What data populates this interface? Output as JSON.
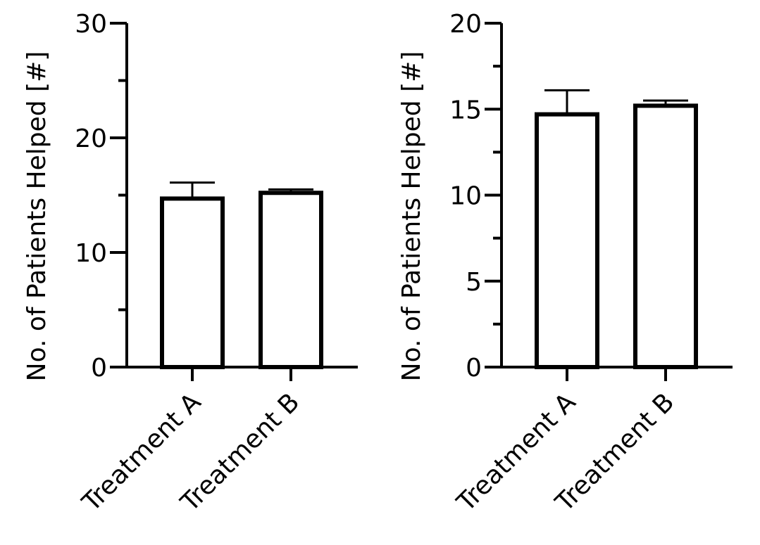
{
  "chart_data": [
    {
      "type": "bar",
      "categories": [
        "Treatment A",
        "Treatment B"
      ],
      "values": [
        14.7,
        15.2
      ],
      "error_upper": [
        16.1,
        15.5
      ],
      "title": "",
      "xlabel": "",
      "ylabel": "No. of Patients Helped [#]",
      "ylim": [
        0,
        30
      ],
      "yticks": [
        0,
        10,
        20,
        30
      ],
      "minor_yticks": [
        5,
        15,
        25
      ],
      "grid": false
    },
    {
      "type": "bar",
      "categories": [
        "Treatment A",
        "Treatment B"
      ],
      "values": [
        14.7,
        15.2
      ],
      "error_upper": [
        16.1,
        15.5
      ],
      "title": "",
      "xlabel": "",
      "ylabel": "No. of Patients Helped [#]",
      "ylim": [
        0,
        20
      ],
      "yticks": [
        0,
        5,
        10,
        15,
        20
      ],
      "minor_yticks": [
        2.5,
        7.5,
        12.5,
        17.5
      ],
      "grid": false
    }
  ],
  "colors": {
    "bar_fill": "#ffffff",
    "bar_stroke": "#000000",
    "axis": "#000000"
  }
}
